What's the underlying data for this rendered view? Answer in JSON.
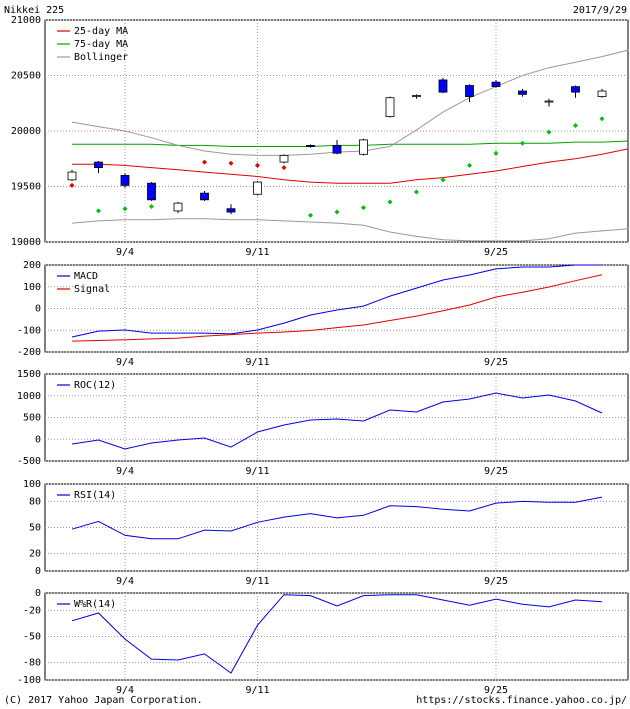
{
  "header": {
    "title": "Nikkei 225",
    "date": "2017/9/29"
  },
  "footer": {
    "copyright": "(C) 2017 Yahoo Japan Corporation.",
    "url": "https://stocks.finance.yahoo.co.jp/"
  },
  "chart_data": [
    {
      "type": "candlestick",
      "categories": [
        null,
        null,
        "9/4",
        null,
        null,
        null,
        null,
        "9/11",
        null,
        null,
        null,
        null,
        null,
        null,
        null,
        null,
        "9/25",
        null,
        null,
        null,
        null,
        null
      ],
      "ylim": [
        19000,
        21000
      ],
      "yticks": [
        21000,
        20500,
        20000,
        19500,
        19000
      ],
      "grid": true,
      "candles": {
        "up_color": "#ffffff",
        "down_color": "#0000ff",
        "open": [
          19560,
          19720,
          19600,
          19530,
          19280,
          19440,
          19300,
          19430,
          19720,
          19870,
          19870,
          19790,
          20130,
          20310,
          20460,
          20410,
          20440,
          20360,
          20270,
          20400,
          20310,
          null
        ],
        "high": [
          19650,
          19730,
          19620,
          19540,
          19360,
          19460,
          19340,
          19550,
          19790,
          19880,
          19920,
          19930,
          20310,
          20330,
          20480,
          20420,
          20460,
          20380,
          20290,
          20410,
          20380,
          null
        ],
        "low": [
          19550,
          19620,
          19490,
          19370,
          19260,
          19370,
          19250,
          19420,
          19710,
          19850,
          19790,
          19780,
          20120,
          20290,
          20340,
          20260,
          20390,
          20310,
          20220,
          20300,
          20300,
          null
        ],
        "close": [
          19630,
          19670,
          19510,
          19380,
          19350,
          19380,
          19270,
          19540,
          19780,
          19860,
          19800,
          19920,
          20300,
          20320,
          20350,
          20310,
          20400,
          20330,
          20270,
          20350,
          20360,
          null
        ]
      },
      "markers": {
        "values": [
          19510,
          19280,
          19300,
          19320,
          null,
          19720,
          19710,
          19690,
          19670,
          19240,
          19270,
          19310,
          19360,
          19450,
          19560,
          19690,
          19800,
          19890,
          19990,
          20050,
          20110,
          null
        ],
        "colors": [
          "#e00000",
          "#00c000",
          "#00c000",
          "#00c000",
          null,
          "#e00000",
          "#e00000",
          "#e00000",
          "#e00000",
          "#00c000",
          "#00c000",
          "#00c000",
          "#00c000",
          "#00c000",
          "#00c000",
          "#00c000",
          "#00c000",
          "#00c000",
          "#00c000",
          "#00c000",
          "#00c000",
          null
        ]
      },
      "series": [
        {
          "name": "25-day MA",
          "color": "#e00000",
          "values": [
            19700,
            19700,
            19690,
            19670,
            19650,
            19630,
            19610,
            19590,
            19560,
            19540,
            19530,
            19530,
            19530,
            19560,
            19580,
            19610,
            19640,
            19680,
            19720,
            19750,
            19790,
            19840
          ]
        },
        {
          "name": "75-day MA",
          "color": "#00a000",
          "values": [
            19880,
            19880,
            19880,
            19880,
            19870,
            19870,
            19860,
            19860,
            19860,
            19860,
            19870,
            19870,
            19880,
            19880,
            19880,
            19880,
            19890,
            19890,
            19890,
            19900,
            19900,
            19910
          ]
        },
        {
          "name": "Bollinger",
          "color": "#999999",
          "upper": [
            20080,
            20040,
            20000,
            19940,
            19870,
            19820,
            19790,
            19780,
            19780,
            19790,
            19810,
            19820,
            19860,
            20010,
            20170,
            20300,
            20400,
            20500,
            20570,
            20620,
            20670,
            20730
          ],
          "lower": [
            19170,
            19190,
            19200,
            19200,
            19210,
            19210,
            19200,
            19200,
            19190,
            19180,
            19170,
            19150,
            19090,
            19050,
            19020,
            19010,
            19010,
            19010,
            19030,
            19080,
            19100,
            19120
          ]
        }
      ]
    },
    {
      "type": "line",
      "categories": [
        null,
        null,
        "9/4",
        null,
        null,
        null,
        null,
        "9/11",
        null,
        null,
        null,
        null,
        null,
        null,
        null,
        null,
        "9/25",
        null,
        null,
        null,
        null,
        null
      ],
      "ylim": [
        -200,
        200
      ],
      "yticks": [
        200,
        100,
        0,
        -100,
        -200
      ],
      "grid": true,
      "series": [
        {
          "name": "MACD",
          "color": "#0000e0",
          "values": [
            -131,
            -104,
            -99,
            -113,
            -113,
            -113,
            -117,
            -99,
            -67,
            -30,
            -7,
            11,
            57,
            94,
            131,
            154,
            182,
            191,
            191,
            200,
            200,
            null
          ]
        },
        {
          "name": "Signal",
          "color": "#e00000",
          "values": [
            -150,
            -147,
            -144,
            -140,
            -136,
            -127,
            -120,
            -113,
            -108,
            -101,
            -88,
            -76,
            -55,
            -35,
            -10,
            16,
            53,
            75,
            99,
            128,
            155,
            null
          ]
        }
      ]
    },
    {
      "type": "line",
      "categories": [
        null,
        null,
        "9/4",
        null,
        null,
        null,
        null,
        "9/11",
        null,
        null,
        null,
        null,
        null,
        null,
        null,
        null,
        "9/25",
        null,
        null,
        null,
        null,
        null
      ],
      "ylim": [
        -500,
        1500
      ],
      "yticks": [
        1500,
        1000,
        500,
        0,
        -500
      ],
      "grid": true,
      "series": [
        {
          "name": "ROC(12)",
          "color": "#0000e0",
          "values": [
            -110,
            -18,
            -225,
            -87,
            -18,
            28,
            -180,
            166,
            327,
            442,
            465,
            419,
            672,
            626,
            856,
            925,
            1063,
            948,
            1017,
            879,
            603,
            null
          ]
        }
      ]
    },
    {
      "type": "line",
      "categories": [
        null,
        null,
        "9/4",
        null,
        null,
        null,
        null,
        "9/11",
        null,
        null,
        null,
        null,
        null,
        null,
        null,
        null,
        "9/25",
        null,
        null,
        null,
        null,
        null
      ],
      "ylim": [
        0,
        100
      ],
      "yticks": [
        100,
        80,
        50,
        20,
        0
      ],
      "grid": true,
      "series": [
        {
          "name": "RSI(14)",
          "color": "#0000e0",
          "values": [
            48,
            57,
            41,
            37,
            37,
            47,
            46,
            56,
            62,
            66,
            61,
            64,
            75,
            74,
            71,
            69,
            78,
            80,
            79,
            79,
            85,
            null
          ]
        }
      ]
    },
    {
      "type": "line",
      "categories": [
        null,
        null,
        "9/4",
        null,
        null,
        null,
        null,
        "9/11",
        null,
        null,
        null,
        null,
        null,
        null,
        null,
        null,
        "9/25",
        null,
        null,
        null,
        null,
        null
      ],
      "ylim": [
        -100,
        0
      ],
      "yticks": [
        0,
        -20,
        -50,
        -80,
        -100
      ],
      "grid": true,
      "series": [
        {
          "name": "W%R(14)",
          "color": "#0000e0",
          "values": [
            -32,
            -23,
            -53,
            -76,
            -77,
            -70,
            -92,
            -37,
            -2,
            -3,
            -15,
            -3,
            -2,
            -2,
            -8,
            -14,
            -7,
            -13,
            -16,
            -8,
            -10,
            null
          ]
        }
      ]
    }
  ]
}
